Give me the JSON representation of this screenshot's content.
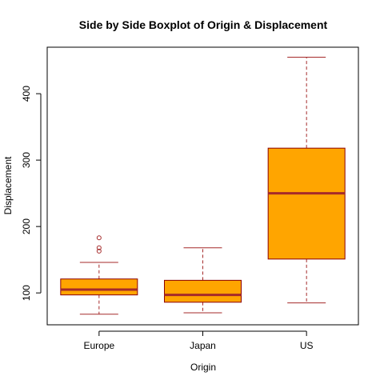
{
  "chart_data": {
    "type": "boxplot",
    "title": "Side by Side Boxplot of Origin & Displacement",
    "xlabel": "Origin",
    "ylabel": "Displacement",
    "categories": [
      "Europe",
      "Japan",
      "US"
    ],
    "ylim": [
      52,
      470
    ],
    "yticks": [
      100,
      200,
      300,
      400
    ],
    "grid": false,
    "legend": "none",
    "colors": {
      "box_fill": "#FFA500",
      "box_border": "#8B0000",
      "median": "#A52A2A",
      "whisker": "#A52A2A",
      "outlier": "#A52A2A",
      "frame": "#000000"
    },
    "boxes": [
      {
        "name": "Europe",
        "min": 68,
        "q1": 97,
        "median": 105,
        "q3": 121,
        "max": 146,
        "outliers": [
          163,
          168,
          183
        ]
      },
      {
        "name": "Japan",
        "min": 70,
        "q1": 86,
        "median": 97,
        "q3": 119,
        "max": 168,
        "outliers": []
      },
      {
        "name": "US",
        "min": 85,
        "q1": 151,
        "median": 250,
        "q3": 318,
        "max": 455,
        "outliers": []
      }
    ]
  }
}
